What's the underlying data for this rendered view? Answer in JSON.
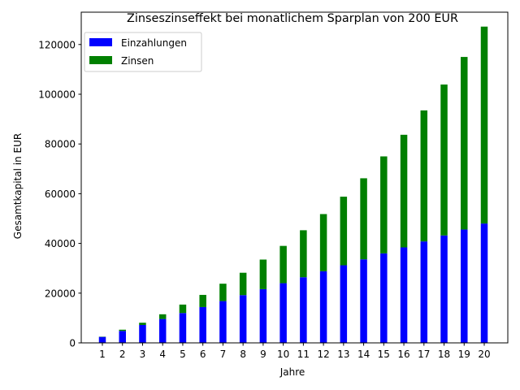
{
  "chart_data": {
    "type": "bar",
    "stacked": true,
    "title": "Zinseszinseffekt bei monatlichem Sparplan von 200 EUR",
    "xlabel": "Jahre",
    "ylabel": "Gesamtkapital in EUR",
    "categories": [
      "1",
      "2",
      "3",
      "4",
      "5",
      "6",
      "7",
      "8",
      "9",
      "10",
      "11",
      "12",
      "13",
      "14",
      "15",
      "16",
      "17",
      "18",
      "19",
      "20"
    ],
    "ylim": [
      0,
      133000
    ],
    "yticks": [
      0,
      20000,
      40000,
      60000,
      80000,
      100000,
      120000
    ],
    "legend_position": "top-left",
    "grid": false,
    "series": [
      {
        "name": "Einzahlungen",
        "color": "#0000ff",
        "values": [
          2400,
          4800,
          7200,
          9600,
          12000,
          14400,
          16800,
          19200,
          21600,
          24000,
          26400,
          28800,
          31200,
          33600,
          36000,
          38400,
          40800,
          43200,
          45600,
          48000
        ]
      },
      {
        "name": "Zinsen",
        "color": "#008000",
        "values": [
          100,
          500,
          900,
          1900,
          3400,
          4900,
          7000,
          9000,
          11900,
          15000,
          18900,
          23000,
          27600,
          32600,
          39000,
          45300,
          52700,
          60700,
          69400,
          79200
        ]
      }
    ]
  }
}
